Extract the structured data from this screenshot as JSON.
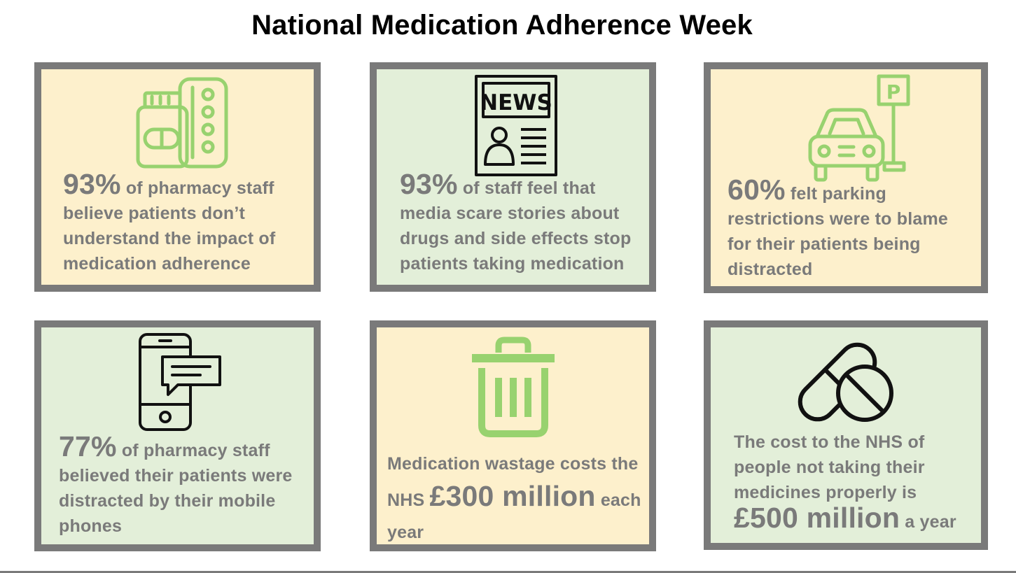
{
  "title": "National Medication Adherence Week",
  "cards": [
    {
      "name": "pharmacy-staff",
      "stat": "93%",
      "pre": "",
      "text": "of pharmacy staff believe patients don’t understand the impact of medication adherence",
      "post": "",
      "icon": "medicine-jar-blister-pack-icon"
    },
    {
      "name": "media-scare",
      "stat": "93%",
      "pre": "",
      "text": "of staff feel that media scare stories about drugs and side effects stop patients taking medication",
      "post": "",
      "icon": "newspaper-icon"
    },
    {
      "name": "parking",
      "stat": "60%",
      "pre": "",
      "text": "felt parking restrictions were to blame for their patients being distracted",
      "post": "",
      "icon": "car-parking-sign-icon"
    },
    {
      "name": "mobile-phones",
      "stat": "77%",
      "pre": "",
      "text": "of pharmacy staff believed their patients were distracted by their mobile phones",
      "post": "",
      "icon": "phone-message-icon"
    },
    {
      "name": "wastage",
      "stat": "£300 million",
      "pre": "Medication wastage costs the NHS",
      "text": "",
      "post": "each year",
      "icon": "trash-bin-icon"
    },
    {
      "name": "cost",
      "stat": "£500 million",
      "pre": "The cost to the NHS of people not taking their medicines properly is",
      "text": "",
      "post": "a year",
      "icon": "pills-icon"
    }
  ],
  "colors": {
    "cream": "#fdf0cc",
    "green": "#e3efd9",
    "border": "#7a7a7a",
    "text": "#7a7a7a",
    "icon_green": "#98d26f",
    "icon_black": "#111111"
  }
}
